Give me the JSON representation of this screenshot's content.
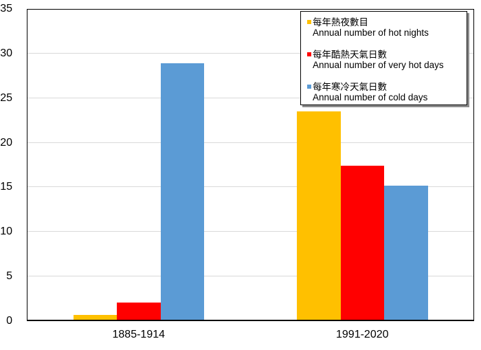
{
  "chart_data": {
    "type": "bar",
    "categories": [
      "1885-1914",
      "1991-2020"
    ],
    "series": [
      {
        "name_zh": "每年熱夜數目",
        "name_en": "Annual number of hot nights",
        "color": "#FFC000",
        "values": [
          0.7,
          23.5
        ]
      },
      {
        "name_zh": "每年酷熱天氣日數",
        "name_en": "Annual number of very hot days",
        "color": "#FF0000",
        "values": [
          2.1,
          17.4
        ]
      },
      {
        "name_zh": "每年寒冷天氣日數",
        "name_en": "Annual number of cold days",
        "color": "#5B9BD5",
        "values": [
          28.9,
          15.2
        ]
      }
    ],
    "ylim": [
      0,
      35
    ],
    "yticks": [
      0,
      5,
      10,
      15,
      20,
      25,
      30,
      35
    ],
    "grid": true,
    "legend_position": "top-right",
    "colors": {
      "gridline": "#D9D9D9",
      "axis": "#000000",
      "background": "#FFFFFF",
      "legend_border": "#000000",
      "legend_shadow": "#8C8C8C"
    }
  }
}
